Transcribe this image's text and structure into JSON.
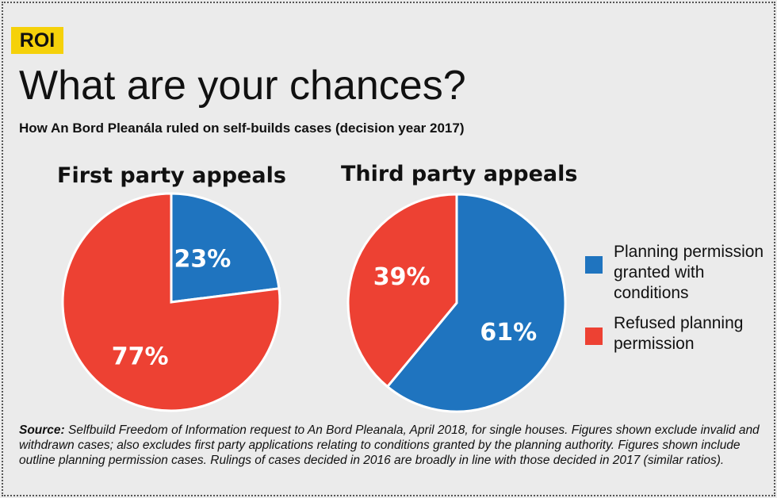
{
  "badge": "ROI",
  "title": "What are your chances?",
  "subtitle": "How An Bord Pleanála ruled on self-builds cases (decision year 2017)",
  "colors": {
    "granted": "#1f74bf",
    "refused": "#ed4133",
    "badge": "#f5d10a"
  },
  "legend": [
    {
      "key": "granted",
      "label": "Planning permission granted with conditions"
    },
    {
      "key": "refused",
      "label": "Refused planning permission"
    }
  ],
  "chart_data": [
    {
      "type": "pie",
      "title": "First party appeals",
      "categories": [
        "Planning permission granted with conditions",
        "Refused planning permission"
      ],
      "values": [
        23,
        77
      ],
      "labels": [
        "23%",
        "77%"
      ],
      "legend_position": "right"
    },
    {
      "type": "pie",
      "title": "Third party appeals",
      "categories": [
        "Planning permission granted with conditions",
        "Refused planning permission"
      ],
      "values": [
        61,
        39
      ],
      "labels": [
        "61%",
        "39%"
      ],
      "legend_position": "right"
    }
  ],
  "source": {
    "label": "Source:",
    "text": " Selfbuild Freedom of Information request to An Bord Pleanala, April 2018, for single houses. Figures shown exclude invalid and withdrawn cases; also excludes first party applications relating to conditions granted by the planning authority. Figures shown include outline planning permission cases. Rulings of cases decided in 2016 are broadly in line with those decided in 2017 (similar ratios)."
  }
}
